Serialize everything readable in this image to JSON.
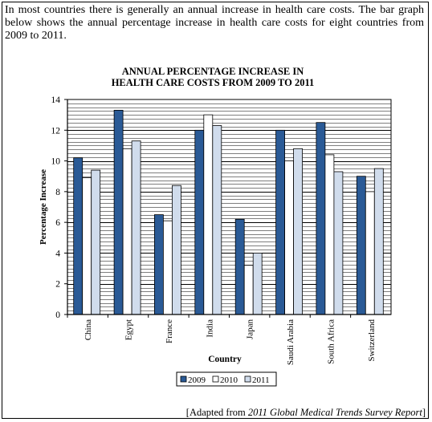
{
  "intro": "In most countries there is generally an annual increase in health care costs. The bar graph below shows the annual percentage increase in health care costs for eight countries from 2009 to 2011.",
  "source": {
    "prefix": "[Adapted from ",
    "title": "2011 Global Medical Trends Survey Report",
    "suffix": "]"
  },
  "colors": {
    "2009": "#2a5a96",
    "2010": "#ffffff",
    "2011": "#d0dcec",
    "grid": "#000000"
  },
  "chart_data": {
    "type": "bar",
    "title": "ANNUAL PERCENTAGE INCREASE IN",
    "subtitle": "HEALTH CARE COSTS FROM 2009 TO 2011",
    "xlabel": "Country",
    "ylabel": "Percentage Increase",
    "ylim": [
      0,
      14
    ],
    "yticks": [
      "0",
      "2",
      "4",
      "6",
      "8",
      "10",
      "12",
      "14"
    ],
    "grid": true,
    "legend_position": "bottom",
    "categories": [
      "China",
      "Egypt",
      "France",
      "India",
      "Japan",
      "Saudi Arabia",
      "South Africa",
      "Switzerland"
    ],
    "series": [
      {
        "name": "2009",
        "values": [
          10.2,
          13.3,
          6.5,
          12.0,
          6.2,
          12.0,
          12.5,
          9.0
        ]
      },
      {
        "name": "2010",
        "values": [
          8.9,
          10.8,
          6.1,
          13.0,
          3.2,
          10.0,
          10.4,
          8.0
        ]
      },
      {
        "name": "2011",
        "values": [
          9.4,
          11.3,
          8.4,
          12.3,
          4.0,
          10.8,
          9.3,
          9.5
        ]
      }
    ]
  }
}
